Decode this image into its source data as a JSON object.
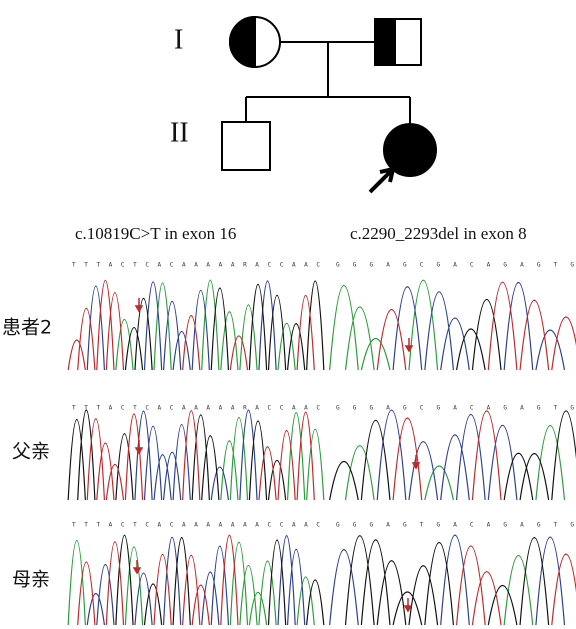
{
  "pedigree": {
    "generations": [
      "I",
      "II"
    ]
  },
  "panels": [
    {
      "title": "c.10819C>T in exon 16",
      "rows": [
        "TTTACTCACAAAAARACCAAC",
        "TTTACTCACAAAAARACCAAC",
        "TTTACTCACAAAAAAACCAAC"
      ]
    },
    {
      "title": "c.2290_2293del in exon 8",
      "rows": [
        "GGGAGCGACAGAGTG",
        "GGGAGCGACAGAGTG",
        "GGGAGTGACAGAGTG"
      ]
    }
  ],
  "row_labels": [
    "患者2",
    "父亲",
    "母亲"
  ]
}
